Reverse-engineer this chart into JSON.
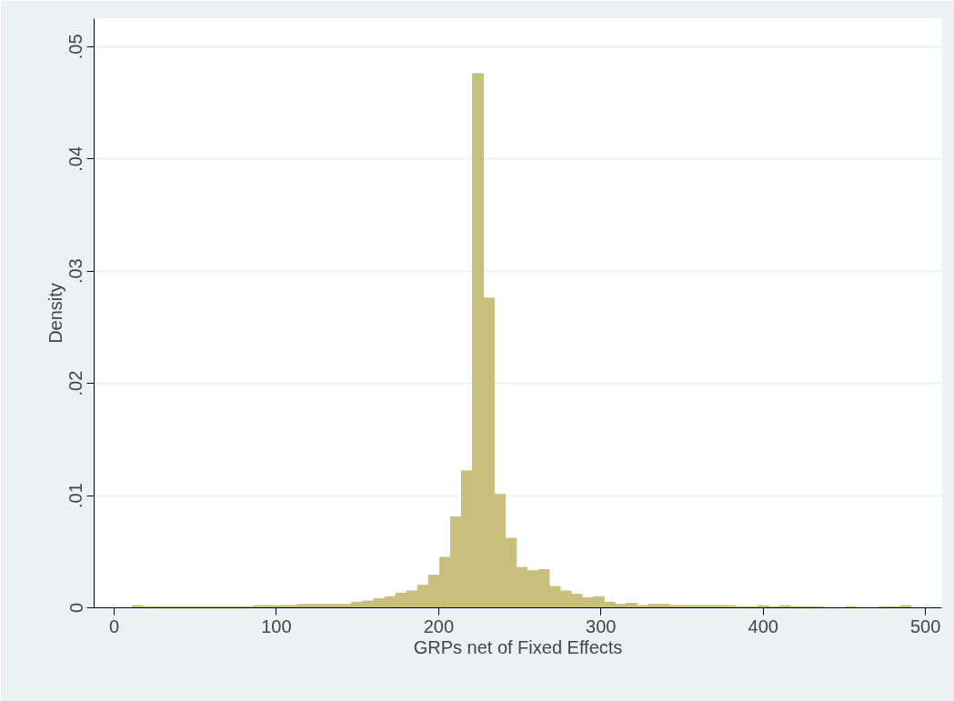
{
  "chart_data": {
    "type": "histogram",
    "xlabel": "GRPs net of Fixed Effects",
    "ylabel": "Density",
    "bins": [
      11.3,
      18.06,
      24.82,
      31.58,
      38.34,
      45.1,
      51.86,
      58.62,
      65.38,
      72.14,
      78.9,
      85.66,
      92.42,
      99.18,
      105.94,
      112.7,
      119.46,
      126.22,
      132.98,
      139.74,
      146.5,
      153.26,
      160.02,
      166.78,
      173.54,
      180.3,
      187.06,
      193.82,
      200.58,
      207.34,
      214.1,
      220.86,
      227.62,
      234.38,
      241.14,
      247.9,
      254.66,
      261.42,
      268.18,
      274.94,
      281.7,
      288.46,
      295.22,
      301.98,
      308.74,
      315.5,
      322.26,
      329.02,
      335.78,
      342.54,
      349.3,
      356.06,
      362.82,
      369.58,
      376.34,
      383.1,
      389.86,
      396.62,
      403.38,
      410.14,
      416.9,
      423.66,
      430.42,
      437.18,
      443.94,
      450.7,
      457.46,
      464.22,
      470.98,
      477.74,
      484.5,
      491.26
    ],
    "values": [
      0.0002,
      0.0001,
      0.0001,
      0.0001,
      0.0001,
      0.0001,
      0.0001,
      0.0001,
      0.0001,
      0.0001,
      0.0001,
      0.0002,
      0.0002,
      0.0002,
      0.0002,
      0.0003,
      0.0003,
      0.0003,
      0.0003,
      0.0003,
      0.0005,
      0.0006,
      0.0008,
      0.001,
      0.0013,
      0.0015,
      0.002,
      0.0029,
      0.0045,
      0.0081,
      0.0122,
      0.0476,
      0.0276,
      0.0101,
      0.0062,
      0.0036,
      0.0033,
      0.0034,
      0.0019,
      0.0015,
      0.0012,
      0.0009,
      0.001,
      0.0005,
      0.0003,
      0.0004,
      0.0002,
      0.0003,
      0.0003,
      0.0002,
      0.0002,
      0.0002,
      0.0002,
      0.0002,
      0.0002,
      0.0001,
      0.0001,
      0.0002,
      0.0001,
      0.0002,
      0.0001,
      0.0001,
      0.0001,
      0,
      0,
      0.0001,
      0,
      0,
      0.0001,
      0.0001,
      0.0002
    ],
    "color": "#c9bf7d",
    "xlim": [
      -12.3,
      510
    ],
    "ylim": [
      0,
      0.0525
    ],
    "xticks": [
      0,
      100,
      200,
      300,
      400,
      500
    ],
    "yticks": [
      {
        "value": 0,
        "label": "0"
      },
      {
        "value": 0.01,
        "label": ".01"
      },
      {
        "value": 0.02,
        "label": ".02"
      },
      {
        "value": 0.03,
        "label": ".03"
      },
      {
        "value": 0.04,
        "label": ".04"
      },
      {
        "value": 0.05,
        "label": ".05"
      }
    ],
    "grid": "y"
  }
}
